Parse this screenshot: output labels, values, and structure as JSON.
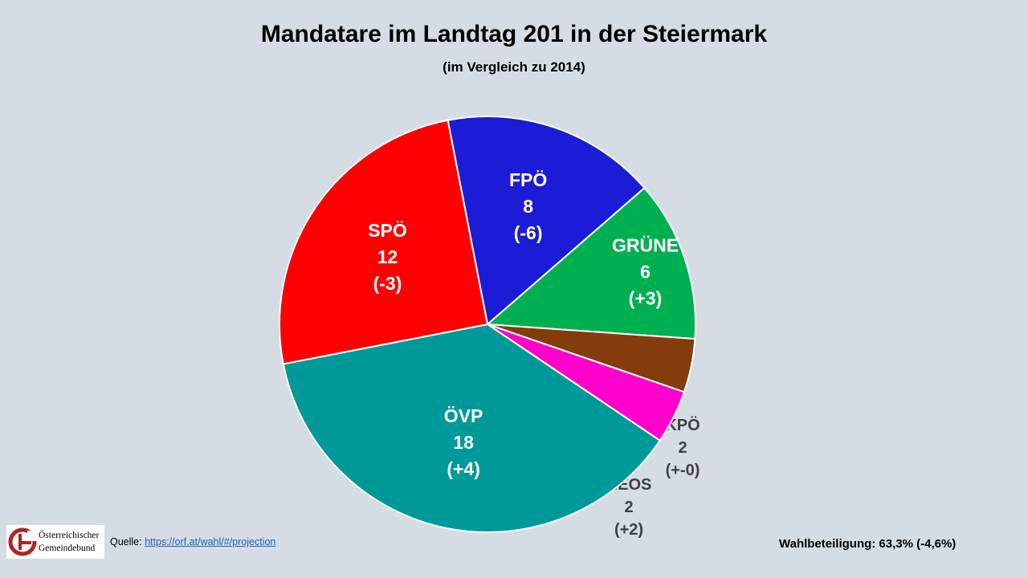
{
  "header": {
    "title": "Mandatare im Landtag 201 in der Steiermark",
    "subtitle": "(im Vergleich zu 2014)"
  },
  "chart_data": {
    "type": "pie",
    "title": "Mandatare im Landtag 201 in der Steiermark",
    "subtitle": "(im Vergleich zu 2014)",
    "slices": [
      {
        "label": "FPÖ",
        "value": 8,
        "change": "(-6)",
        "color": "#1c1cd6",
        "label_color": "#ffffff"
      },
      {
        "label": "GRÜNE",
        "value": 6,
        "change": "(+3)",
        "color": "#00b050",
        "label_color": "#ffffff"
      },
      {
        "label": "KPÖ",
        "value": 2,
        "change": "(+-0)",
        "color": "#843c0c",
        "label_color": "#404040"
      },
      {
        "label": "NEOS",
        "value": 2,
        "change": "(+2)",
        "color": "#ff00cc",
        "label_color": "#404040"
      },
      {
        "label": "ÖVP",
        "value": 18,
        "change": "(+4)",
        "color": "#009999",
        "label_color": "#ffffff"
      },
      {
        "label": "SPÖ",
        "value": 12,
        "change": "(-3)",
        "color": "#ff0000",
        "label_color": "#ffffff"
      }
    ]
  },
  "footer": {
    "logo_line1": "Österreichischer",
    "logo_line2": "Gemeindebund",
    "source_label": "Quelle:",
    "source_link": "https://orf.at/wahl/#/projection",
    "turnout": "Wahlbeteiligung: 63,3% (-4,6%)"
  }
}
